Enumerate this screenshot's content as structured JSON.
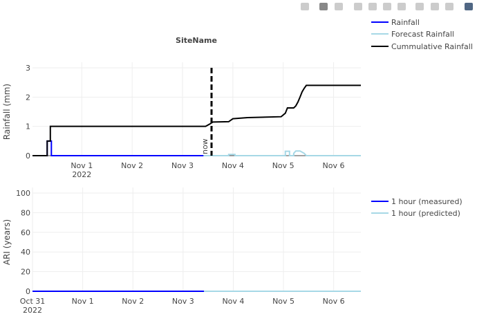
{
  "modebar": {
    "icons": [
      "camera-icon",
      "zoom-icon",
      "pan-icon",
      "zoom-in-icon",
      "zoom-out-icon",
      "autoscale-icon",
      "home-icon",
      "spike-lines-icon",
      "hover-closest-icon",
      "hover-compare-icon",
      "plotly-logo-icon"
    ]
  },
  "chart_data": [
    {
      "type": "line",
      "title": "SiteName",
      "ylabel": "Rainfall (mm)",
      "ylim": [
        0,
        3
      ],
      "yticks": [
        0,
        1,
        2,
        3
      ],
      "xlim": [
        "2022-10-31T00:30",
        "2022-11-06T13:00"
      ],
      "xticks": [
        {
          "t": "2022-11-01T00:00",
          "label": "Nov 1",
          "sub": "2022"
        },
        {
          "t": "2022-11-02T00:00",
          "label": "Nov 2"
        },
        {
          "t": "2022-11-03T00:00",
          "label": "Nov 3"
        },
        {
          "t": "2022-11-04T00:00",
          "label": "Nov 4"
        },
        {
          "t": "2022-11-05T00:00",
          "label": "Nov 5"
        },
        {
          "t": "2022-11-06T00:00",
          "label": "Nov 6"
        }
      ],
      "grid": true,
      "legend": "top-right",
      "annotation": {
        "text": "now",
        "t": "2022-11-03T13:50"
      },
      "series": [
        {
          "name": "Rainfall",
          "color": "#0000ff",
          "points": [
            [
              "2022-10-31T00:30",
              0
            ],
            [
              "2022-10-31T07:30",
              0
            ],
            [
              "2022-10-31T07:30",
              0.5
            ],
            [
              "2022-10-31T09:30",
              0.5
            ],
            [
              "2022-10-31T09:30",
              0
            ],
            [
              "2022-11-03T10:00",
              0
            ]
          ]
        },
        {
          "name": "Forecast Rainfall",
          "color": "#a6d8e6",
          "points": [
            [
              "2022-11-03T10:00",
              0
            ],
            [
              "2022-11-03T22:00",
              0
            ],
            [
              "2022-11-03T22:00",
              0.04
            ],
            [
              "2022-11-04T01:00",
              0.04
            ],
            [
              "2022-11-04T01:00",
              0
            ],
            [
              "2022-11-05T01:00",
              0
            ],
            [
              "2022-11-05T01:00",
              0.15
            ],
            [
              "2022-11-05T03:00",
              0.15
            ],
            [
              "2022-11-05T03:00",
              0
            ],
            [
              "2022-11-05T05:00",
              0
            ],
            [
              "2022-11-05T05:00",
              0.08
            ],
            [
              "2022-11-05T06:00",
              0.16
            ],
            [
              "2022-11-05T08:00",
              0.16
            ],
            [
              "2022-11-05T10:00",
              0.08
            ],
            [
              "2022-11-05T11:00",
              0
            ],
            [
              "2022-11-06T13:00",
              0
            ]
          ]
        },
        {
          "name": "Cummulative Rainfall",
          "color": "#000000",
          "points": [
            [
              "2022-10-31T00:30",
              0
            ],
            [
              "2022-10-31T07:30",
              0
            ],
            [
              "2022-10-31T07:30",
              0.5
            ],
            [
              "2022-10-31T09:00",
              0.5
            ],
            [
              "2022-10-31T09:00",
              1.0
            ],
            [
              "2022-11-03T11:00",
              1.0
            ],
            [
              "2022-11-03T13:00",
              1.08
            ],
            [
              "2022-11-03T14:30",
              1.15
            ],
            [
              "2022-11-03T22:00",
              1.16
            ],
            [
              "2022-11-04T00:00",
              1.26
            ],
            [
              "2022-11-04T07:00",
              1.3
            ],
            [
              "2022-11-04T23:00",
              1.33
            ],
            [
              "2022-11-05T01:00",
              1.45
            ],
            [
              "2022-11-05T02:00",
              1.63
            ],
            [
              "2022-11-05T05:00",
              1.63
            ],
            [
              "2022-11-05T06:00",
              1.7
            ],
            [
              "2022-11-05T07:00",
              1.83
            ],
            [
              "2022-11-05T08:00",
              2.0
            ],
            [
              "2022-11-05T09:00",
              2.18
            ],
            [
              "2022-11-05T10:00",
              2.3
            ],
            [
              "2022-11-05T11:00",
              2.4
            ],
            [
              "2022-11-06T13:00",
              2.4
            ]
          ]
        }
      ]
    },
    {
      "type": "line",
      "ylabel": "ARI (years)",
      "ylim": [
        0,
        100
      ],
      "yticks": [
        0,
        20,
        40,
        60,
        80,
        100
      ],
      "xlim": [
        "2022-10-31T00:00",
        "2022-11-06T13:00"
      ],
      "xticks": [
        {
          "t": "2022-10-31T00:00",
          "label": "Oct 31",
          "sub": "2022"
        },
        {
          "t": "2022-11-01T00:00",
          "label": "Nov 1"
        },
        {
          "t": "2022-11-02T00:00",
          "label": "Nov 2"
        },
        {
          "t": "2022-11-03T00:00",
          "label": "Nov 3"
        },
        {
          "t": "2022-11-04T00:00",
          "label": "Nov 4"
        },
        {
          "t": "2022-11-05T00:00",
          "label": "Nov 5"
        },
        {
          "t": "2022-11-06T00:00",
          "label": "Nov 6"
        }
      ],
      "grid": true,
      "legend": "top-right",
      "series": [
        {
          "name": "1 hour (measured)",
          "color": "#0000ff",
          "points": [
            [
              "2022-10-31T00:00",
              0
            ],
            [
              "2022-11-03T10:00",
              0
            ]
          ]
        },
        {
          "name": "1 hour (predicted)",
          "color": "#a6d8e6",
          "points": [
            [
              "2022-11-03T10:00",
              0
            ],
            [
              "2022-11-06T13:00",
              0
            ]
          ]
        }
      ]
    }
  ]
}
